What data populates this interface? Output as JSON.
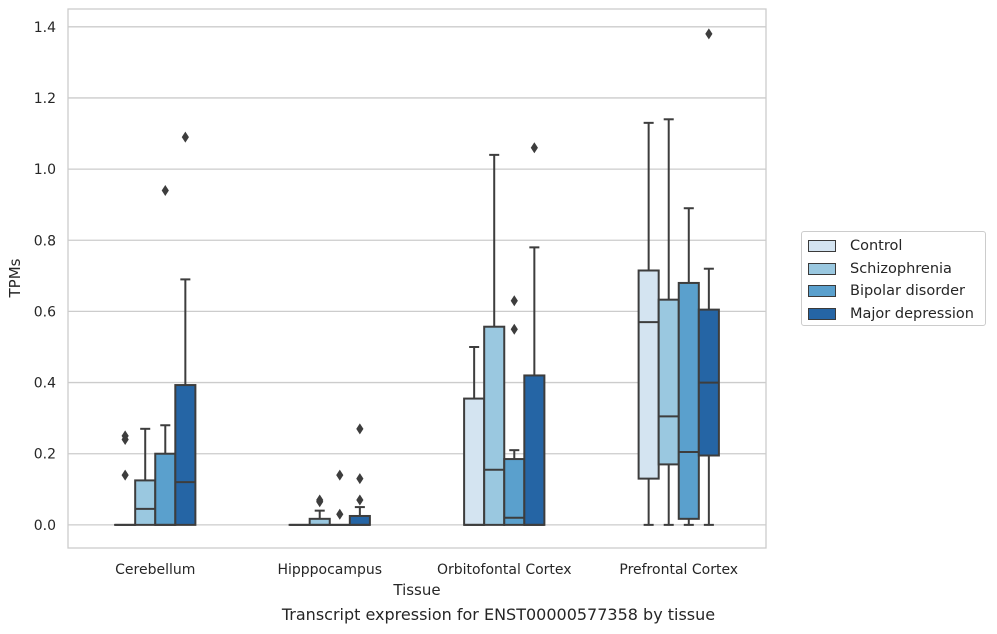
{
  "caption": "Transcript expression for ENST00000577358 by tissue",
  "chart_data": {
    "type": "box",
    "xlabel": "Tissue",
    "ylabel": "TPMs",
    "ylim": [
      -0.065,
      1.45
    ],
    "yticks": [
      0.0,
      0.2,
      0.4,
      0.6,
      0.8,
      1.0,
      1.2,
      1.4
    ],
    "ytick_labels": [
      "0.0",
      "0.2",
      "0.4",
      "0.6",
      "0.8",
      "1.0",
      "1.2",
      "1.4"
    ],
    "grid": "horizontal",
    "legend_position": "right",
    "categories": [
      "Cerebellum",
      "Hipppocampus",
      "Orbitofontal Cortex",
      "Prefrontal Cortex"
    ],
    "series": [
      {
        "name": "Control",
        "color": "#d4e4f1",
        "boxes": [
          {
            "q1": 0.0,
            "median": 0.0,
            "q3": 0.0,
            "whisker_low": 0.0,
            "whisker_high": 0.0,
            "outliers": [
              0.14,
              0.24,
              0.25
            ]
          },
          {
            "q1": 0.0,
            "median": 0.0,
            "q3": 0.0,
            "whisker_low": 0.0,
            "whisker_high": 0.0,
            "outliers": []
          },
          {
            "q1": 0.0,
            "median": 0.0,
            "q3": 0.355,
            "whisker_low": 0.0,
            "whisker_high": 0.5,
            "outliers": []
          },
          {
            "q1": 0.13,
            "median": 0.57,
            "q3": 0.715,
            "whisker_low": 0.0,
            "whisker_high": 1.13,
            "outliers": []
          }
        ]
      },
      {
        "name": "Schizophrenia",
        "color": "#9ac8e0",
        "boxes": [
          {
            "q1": 0.0,
            "median": 0.045,
            "q3": 0.125,
            "whisker_low": 0.0,
            "whisker_high": 0.27,
            "outliers": []
          },
          {
            "q1": 0.0,
            "median": 0.0,
            "q3": 0.017,
            "whisker_low": 0.0,
            "whisker_high": 0.04,
            "outliers": [
              0.065,
              0.07
            ]
          },
          {
            "q1": 0.0,
            "median": 0.155,
            "q3": 0.557,
            "whisker_low": 0.0,
            "whisker_high": 1.04,
            "outliers": []
          },
          {
            "q1": 0.17,
            "median": 0.305,
            "q3": 0.633,
            "whisker_low": 0.0,
            "whisker_high": 1.14,
            "outliers": []
          }
        ]
      },
      {
        "name": "Bipolar disorder",
        "color": "#5aa0cd",
        "boxes": [
          {
            "q1": 0.0,
            "median": 0.0,
            "q3": 0.2,
            "whisker_low": 0.0,
            "whisker_high": 0.28,
            "outliers": [
              0.94
            ]
          },
          {
            "q1": 0.0,
            "median": 0.0,
            "q3": 0.0,
            "whisker_low": 0.0,
            "whisker_high": 0.0,
            "outliers": [
              0.03,
              0.14
            ]
          },
          {
            "q1": 0.0,
            "median": 0.02,
            "q3": 0.185,
            "whisker_low": 0.0,
            "whisker_high": 0.21,
            "outliers": [
              0.55,
              0.63
            ]
          },
          {
            "q1": 0.017,
            "median": 0.205,
            "q3": 0.68,
            "whisker_low": 0.0,
            "whisker_high": 0.89,
            "outliers": []
          }
        ]
      },
      {
        "name": "Major depression",
        "color": "#2565a5",
        "boxes": [
          {
            "q1": 0.0,
            "median": 0.12,
            "q3": 0.393,
            "whisker_low": 0.0,
            "whisker_high": 0.69,
            "outliers": [
              1.09
            ]
          },
          {
            "q1": 0.0,
            "median": 0.0,
            "q3": 0.025,
            "whisker_low": 0.0,
            "whisker_high": 0.05,
            "outliers": [
              0.07,
              0.13,
              0.27
            ]
          },
          {
            "q1": 0.0,
            "median": 0.0,
            "q3": 0.42,
            "whisker_low": 0.0,
            "whisker_high": 0.78,
            "outliers": [
              1.06
            ]
          },
          {
            "q1": 0.195,
            "median": 0.4,
            "q3": 0.605,
            "whisker_low": 0.0,
            "whisker_high": 0.72,
            "outliers": [
              1.38
            ]
          }
        ]
      }
    ]
  }
}
